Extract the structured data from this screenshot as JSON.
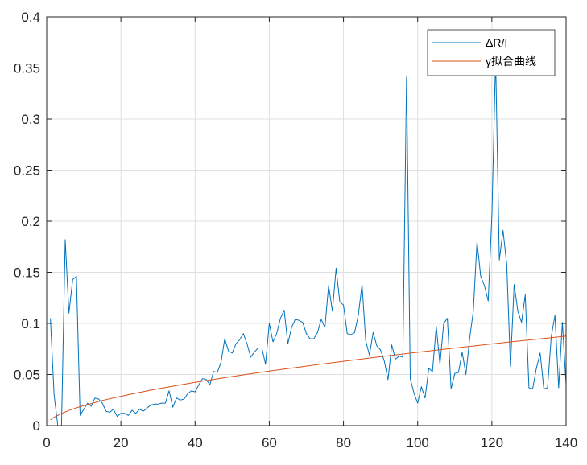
{
  "chart_data": {
    "type": "line",
    "title": "",
    "xlabel": "",
    "ylabel": "",
    "xlim": [
      0,
      140
    ],
    "ylim": [
      0,
      0.4
    ],
    "xticks": [
      0,
      20,
      40,
      60,
      80,
      100,
      120,
      140
    ],
    "yticks": [
      0,
      0.05,
      0.1,
      0.15,
      0.2,
      0.25,
      0.3,
      0.35,
      0.4
    ],
    "xtick_labels": [
      "0",
      "20",
      "40",
      "60",
      "80",
      "100",
      "120",
      "140"
    ],
    "ytick_labels": [
      "0",
      "0.05",
      "0.1",
      "0.15",
      "0.2",
      "0.25",
      "0.3",
      "0.35",
      "0.4"
    ],
    "grid": true,
    "legend_position": "top-right",
    "series": [
      {
        "name": "ΔR/I",
        "color": "#0072BD",
        "x": [
          1,
          2,
          3,
          4,
          5,
          6,
          7,
          8,
          9,
          10,
          11,
          12,
          13,
          14,
          15,
          16,
          17,
          18,
          19,
          20,
          21,
          22,
          23,
          24,
          25,
          26,
          27,
          28,
          29,
          30,
          31,
          32,
          33,
          34,
          35,
          36,
          37,
          38,
          39,
          40,
          41,
          42,
          43,
          44,
          45,
          46,
          47,
          48,
          49,
          50,
          51,
          52,
          53,
          54,
          55,
          56,
          57,
          58,
          59,
          60,
          61,
          62,
          63,
          64,
          65,
          66,
          67,
          68,
          69,
          70,
          71,
          72,
          73,
          74,
          75,
          76,
          77,
          78,
          79,
          80,
          81,
          82,
          83,
          84,
          85,
          86,
          87,
          88,
          89,
          90,
          91,
          92,
          93,
          94,
          95,
          96,
          97,
          98,
          99,
          100,
          101,
          102,
          103,
          104,
          105,
          106,
          107,
          108,
          109,
          110,
          111,
          112,
          113,
          114,
          115,
          116,
          117,
          118,
          119,
          120,
          121,
          122,
          123,
          124,
          125,
          126,
          127,
          128,
          129,
          130,
          131,
          132,
          133,
          134,
          135,
          136,
          137,
          138,
          139,
          140
        ],
        "values": [
          0.105,
          0.03,
          0.0,
          0.0,
          0.182,
          0.11,
          0.143,
          0.146,
          0.01,
          0.016,
          0.022,
          0.019,
          0.027,
          0.026,
          0.022,
          0.014,
          0.013,
          0.016,
          0.009,
          0.012,
          0.012,
          0.01,
          0.015,
          0.012,
          0.016,
          0.014,
          0.017,
          0.02,
          0.021,
          0.021,
          0.022,
          0.022,
          0.034,
          0.018,
          0.027,
          0.025,
          0.026,
          0.031,
          0.034,
          0.033,
          0.04,
          0.046,
          0.045,
          0.04,
          0.053,
          0.052,
          0.062,
          0.085,
          0.073,
          0.071,
          0.08,
          0.084,
          0.09,
          0.08,
          0.067,
          0.072,
          0.076,
          0.076,
          0.06,
          0.1,
          0.082,
          0.09,
          0.105,
          0.113,
          0.08,
          0.096,
          0.104,
          0.103,
          0.101,
          0.09,
          0.085,
          0.085,
          0.091,
          0.104,
          0.096,
          0.137,
          0.112,
          0.154,
          0.121,
          0.118,
          0.09,
          0.089,
          0.091,
          0.108,
          0.138,
          0.083,
          0.069,
          0.091,
          0.078,
          0.074,
          0.063,
          0.045,
          0.079,
          0.065,
          0.068,
          0.067,
          0.341,
          0.046,
          0.032,
          0.022,
          0.038,
          0.027,
          0.056,
          0.053,
          0.097,
          0.06,
          0.1,
          0.105,
          0.036,
          0.051,
          0.052,
          0.072,
          0.05,
          0.085,
          0.112,
          0.18,
          0.146,
          0.137,
          0.122,
          0.206,
          0.36,
          0.162,
          0.191,
          0.158,
          0.058,
          0.138,
          0.112,
          0.101,
          0.128,
          0.037,
          0.036,
          0.056,
          0.071,
          0.036,
          0.037,
          0.087,
          0.108,
          0.037,
          0.101,
          0.04
        ]
      },
      {
        "name": "γ拟合曲线",
        "color": "#D95319",
        "x": [
          1,
          2,
          4,
          6,
          8,
          10,
          12,
          14,
          16,
          18,
          20,
          25,
          30,
          35,
          40,
          45,
          50,
          55,
          60,
          65,
          70,
          75,
          80,
          85,
          90,
          95,
          100,
          105,
          110,
          115,
          120,
          125,
          130,
          135,
          140
        ],
        "values": [
          0.0055,
          0.0081,
          0.0118,
          0.0148,
          0.0173,
          0.0196,
          0.0216,
          0.0236,
          0.0254,
          0.0271,
          0.0287,
          0.0325,
          0.036,
          0.0392,
          0.0423,
          0.0452,
          0.048,
          0.0507,
          0.0533,
          0.0558,
          0.0582,
          0.0606,
          0.0629,
          0.0652,
          0.0674,
          0.0696,
          0.0717,
          0.0738,
          0.0759,
          0.0779,
          0.0799,
          0.0819,
          0.0838,
          0.0857,
          0.0876
        ]
      }
    ]
  }
}
